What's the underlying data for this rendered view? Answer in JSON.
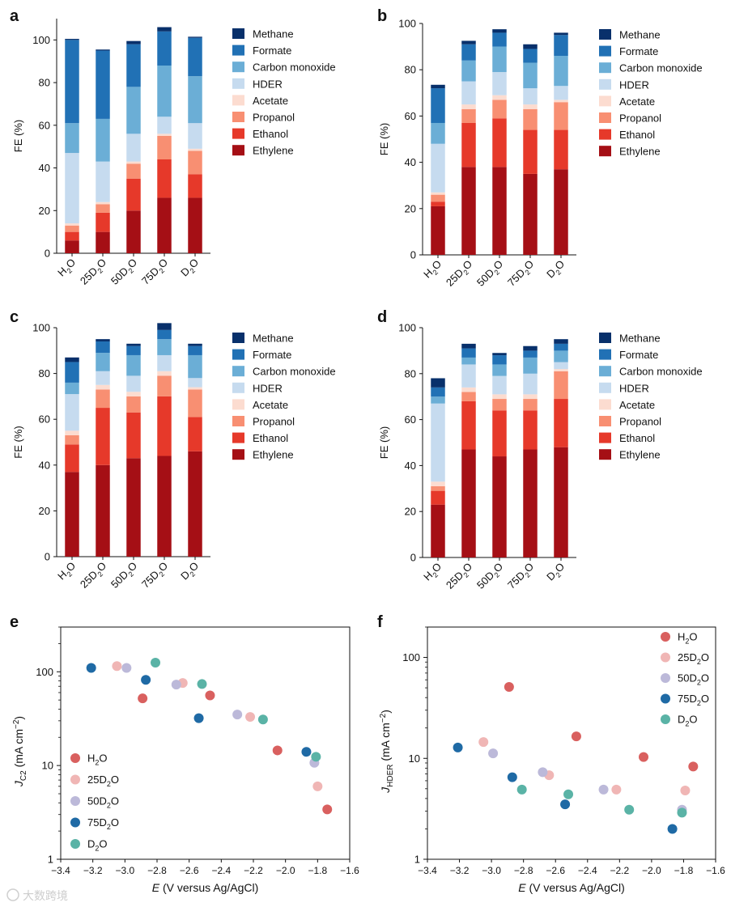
{
  "chart_data": [
    {
      "panel": "a",
      "type": "bar",
      "stacked": true,
      "categories": [
        "H2O",
        "25D2O",
        "50D2O",
        "75D2O",
        "D2O"
      ],
      "ylabel": "FE (%)",
      "ylim": [
        0,
        110
      ],
      "yticks": [
        0,
        20,
        40,
        60,
        80,
        100
      ],
      "legend": "right",
      "series": [
        {
          "name": "Ethylene",
          "color": "#a50f15",
          "values": [
            6,
            10,
            20,
            26,
            26
          ]
        },
        {
          "name": "Ethanol",
          "color": "#e6392a",
          "values": [
            4,
            9,
            15,
            18,
            11
          ]
        },
        {
          "name": "Propanol",
          "color": "#f88f72",
          "values": [
            3,
            4,
            7,
            11,
            11
          ]
        },
        {
          "name": "Acetate",
          "color": "#fcdcd0",
          "values": [
            1,
            1,
            1,
            1,
            1
          ]
        },
        {
          "name": "HDER",
          "color": "#c6dbef",
          "values": [
            33,
            19,
            13,
            8,
            12
          ]
        },
        {
          "name": "Carbon monoxide",
          "color": "#6baed6",
          "values": [
            14,
            20,
            22,
            24,
            22
          ]
        },
        {
          "name": "Formate",
          "color": "#2171b5",
          "values": [
            39,
            32,
            20,
            16,
            18
          ]
        },
        {
          "name": "Methane",
          "color": "#08306b",
          "values": [
            0.5,
            0.5,
            1.5,
            2,
            0.5
          ]
        }
      ]
    },
    {
      "panel": "b",
      "type": "bar",
      "stacked": true,
      "categories": [
        "H2O",
        "25D2O",
        "50D2O",
        "75D2O",
        "D2O"
      ],
      "ylabel": "FE (%)",
      "ylim": [
        0,
        100
      ],
      "yticks": [
        0,
        20,
        40,
        60,
        80,
        100
      ],
      "legend": "right",
      "series": [
        {
          "name": "Ethylene",
          "color": "#a50f15",
          "values": [
            21,
            38,
            38,
            35,
            37
          ]
        },
        {
          "name": "Ethanol",
          "color": "#e6392a",
          "values": [
            2,
            19,
            21,
            19,
            17
          ]
        },
        {
          "name": "Propanol",
          "color": "#f88f72",
          "values": [
            3,
            6,
            8,
            9,
            12
          ]
        },
        {
          "name": "Acetate",
          "color": "#fcdcd0",
          "values": [
            1,
            2,
            2,
            2,
            1
          ]
        },
        {
          "name": "HDER",
          "color": "#c6dbef",
          "values": [
            21,
            10,
            10,
            7,
            6
          ]
        },
        {
          "name": "Carbon monoxide",
          "color": "#6baed6",
          "values": [
            9,
            9,
            11,
            11,
            13
          ]
        },
        {
          "name": "Formate",
          "color": "#2171b5",
          "values": [
            15,
            7,
            6,
            6,
            9
          ]
        },
        {
          "name": "Methane",
          "color": "#08306b",
          "values": [
            1.5,
            1.5,
            1.5,
            2,
            1
          ]
        }
      ]
    },
    {
      "panel": "c",
      "type": "bar",
      "stacked": true,
      "categories": [
        "H2O",
        "25D2O",
        "50D2O",
        "75D2O",
        "D2O"
      ],
      "ylabel": "FE (%)",
      "ylim": [
        0,
        100
      ],
      "yticks": [
        0,
        20,
        40,
        60,
        80,
        100
      ],
      "legend": "right",
      "series": [
        {
          "name": "Ethylene",
          "color": "#a50f15",
          "values": [
            37,
            40,
            43,
            44,
            46
          ]
        },
        {
          "name": "Ethanol",
          "color": "#e6392a",
          "values": [
            12,
            25,
            20,
            26,
            15
          ]
        },
        {
          "name": "Propanol",
          "color": "#f88f72",
          "values": [
            4,
            8,
            7,
            9,
            12
          ]
        },
        {
          "name": "Acetate",
          "color": "#fcdcd0",
          "values": [
            2,
            2,
            2,
            2,
            1
          ]
        },
        {
          "name": "HDER",
          "color": "#c6dbef",
          "values": [
            16,
            6,
            7,
            7,
            4
          ]
        },
        {
          "name": "Carbon monoxide",
          "color": "#6baed6",
          "values": [
            5,
            8,
            9,
            7,
            10
          ]
        },
        {
          "name": "Formate",
          "color": "#2171b5",
          "values": [
            9,
            5,
            4,
            4,
            4
          ]
        },
        {
          "name": "Methane",
          "color": "#08306b",
          "values": [
            2,
            1,
            1,
            3,
            1
          ]
        }
      ]
    },
    {
      "panel": "d",
      "type": "bar",
      "stacked": true,
      "categories": [
        "H2O",
        "25D2O",
        "50D2O",
        "75D2O",
        "D2O"
      ],
      "ylabel": "FE (%)",
      "ylim": [
        0,
        100
      ],
      "yticks": [
        0,
        20,
        40,
        60,
        80,
        100
      ],
      "legend": "right",
      "series": [
        {
          "name": "Ethylene",
          "color": "#a50f15",
          "values": [
            23,
            47,
            44,
            47,
            48
          ]
        },
        {
          "name": "Ethanol",
          "color": "#e6392a",
          "values": [
            6,
            21,
            20,
            17,
            21
          ]
        },
        {
          "name": "Propanol",
          "color": "#f88f72",
          "values": [
            2,
            4,
            5,
            5,
            12
          ]
        },
        {
          "name": "Acetate",
          "color": "#fcdcd0",
          "values": [
            2,
            2,
            2,
            2,
            1
          ]
        },
        {
          "name": "HDER",
          "color": "#c6dbef",
          "values": [
            34,
            10,
            8,
            9,
            3
          ]
        },
        {
          "name": "Carbon monoxide",
          "color": "#6baed6",
          "values": [
            3,
            3,
            5,
            7,
            5
          ]
        },
        {
          "name": "Formate",
          "color": "#2171b5",
          "values": [
            4,
            4,
            4,
            3,
            3
          ]
        },
        {
          "name": "Methane",
          "color": "#08306b",
          "values": [
            4,
            2,
            1,
            2,
            2
          ]
        }
      ]
    },
    {
      "panel": "e",
      "type": "scatter",
      "xlabel": "E (V versus Ag/AgCl)",
      "ylabel": "J_C2 (mA cm^-2)",
      "xlim": [
        -3.4,
        -1.6
      ],
      "xticks": [
        -3.4,
        -3.2,
        -3.0,
        -2.8,
        -2.6,
        -2.4,
        -2.2,
        -2.0,
        -1.8,
        -1.6
      ],
      "ylim": [
        1,
        300
      ],
      "yscale": "log",
      "yticks": [
        1,
        10,
        100
      ],
      "legend": "bottom-left",
      "series": [
        {
          "name": "H2O",
          "color": "#d9605f",
          "x": [
            -2.89,
            -2.47,
            -2.05,
            -1.74
          ],
          "y": [
            52,
            56,
            14.5,
            3.4
          ]
        },
        {
          "name": "25D2O",
          "color": "#f0b6b5",
          "x": [
            -3.05,
            -2.64,
            -2.22,
            -1.8
          ],
          "y": [
            115,
            76,
            33,
            6
          ]
        },
        {
          "name": "50D2O",
          "color": "#bcb9d9",
          "x": [
            -2.99,
            -2.68,
            -2.3,
            -1.82
          ],
          "y": [
            110,
            73,
            35,
            10.7
          ]
        },
        {
          "name": "75D2O",
          "color": "#1f6aa5",
          "x": [
            -3.21,
            -2.87,
            -2.54,
            -1.87
          ],
          "y": [
            110,
            82,
            32,
            14
          ]
        },
        {
          "name": "D2O",
          "color": "#5ab3a6",
          "x": [
            -2.81,
            -2.52,
            -2.14,
            -1.81
          ],
          "y": [
            125,
            74,
            31,
            12.4
          ]
        }
      ]
    },
    {
      "panel": "f",
      "type": "scatter",
      "xlabel": "E (V versus Ag/AgCl)",
      "ylabel": "J_HDER (mA cm^-2)",
      "xlim": [
        -3.4,
        -1.6
      ],
      "xticks": [
        -3.4,
        -3.2,
        -3.0,
        -2.8,
        -2.6,
        -2.4,
        -2.2,
        -2.0,
        -1.8,
        -1.6
      ],
      "ylim": [
        1,
        200
      ],
      "yscale": "log",
      "yticks": [
        1,
        10,
        100
      ],
      "legend": "top-right",
      "series": [
        {
          "name": "H2O",
          "color": "#d9605f",
          "x": [
            -2.89,
            -2.47,
            -2.05,
            -1.74
          ],
          "y": [
            51,
            16.5,
            10.3,
            8.3
          ]
        },
        {
          "name": "25D2O",
          "color": "#f0b6b5",
          "x": [
            -3.05,
            -2.64,
            -2.22,
            -1.79
          ],
          "y": [
            14.5,
            6.8,
            4.9,
            4.8
          ]
        },
        {
          "name": "50D2O",
          "color": "#bcb9d9",
          "x": [
            -2.99,
            -2.68,
            -2.3,
            -1.81
          ],
          "y": [
            11.2,
            7.3,
            4.9,
            3.1
          ]
        },
        {
          "name": "75D2O",
          "color": "#1f6aa5",
          "x": [
            -3.21,
            -2.87,
            -2.54,
            -1.87
          ],
          "y": [
            12.8,
            6.5,
            3.5,
            2.0
          ]
        },
        {
          "name": "D2O",
          "color": "#5ab3a6",
          "x": [
            -2.81,
            -2.52,
            -2.14,
            -1.81
          ],
          "y": [
            4.9,
            4.4,
            3.1,
            2.9
          ]
        }
      ]
    }
  ],
  "panel_labels": [
    "a",
    "b",
    "c",
    "d",
    "e",
    "f"
  ],
  "category_labels": [
    {
      "base": "H",
      "sub": "2",
      "tail": "O"
    },
    {
      "base": "25D",
      "sub": "2",
      "tail": "O"
    },
    {
      "base": "50D",
      "sub": "2",
      "tail": "O"
    },
    {
      "base": "75D",
      "sub": "2",
      "tail": "O"
    },
    {
      "base": "D",
      "sub": "2",
      "tail": "O"
    }
  ],
  "legend_bar_order": [
    "Methane",
    "Formate",
    "Carbon monoxide",
    "HDER",
    "Acetate",
    "Propanol",
    "Ethanol",
    "Ethylene"
  ],
  "ylabel_bar": "FE (%)",
  "ylabel_e": {
    "base": "J",
    "sub": "C2",
    "unit": " (mA cm",
    "sup": "−2",
    "close": ")"
  },
  "ylabel_f": {
    "base": "J",
    "sub": "HDER",
    "unit": " (mA cm",
    "sup": "−2",
    "close": ")"
  },
  "xlabel_scatter": {
    "italic": "E",
    "rest": " (V versus Ag/AgCl)"
  },
  "xtick_labels": [
    "−3.4",
    "−3.2",
    "−3.0",
    "−2.8",
    "−2.6",
    "−2.4",
    "−2.2",
    "−2.0",
    "−1.8",
    "−1.6"
  ],
  "log_tick_labels": [
    "1",
    "10",
    "100"
  ],
  "watermark": "大数跨境"
}
